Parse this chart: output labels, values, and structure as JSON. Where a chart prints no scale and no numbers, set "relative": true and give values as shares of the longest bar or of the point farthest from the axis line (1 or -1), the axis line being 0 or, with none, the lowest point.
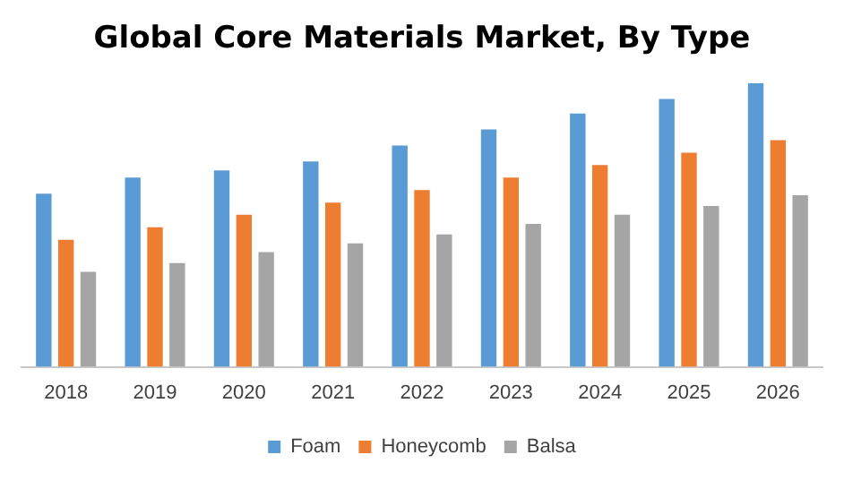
{
  "chart_data": {
    "type": "bar",
    "title": "Global Core Materials Market, By Type",
    "relative": true,
    "legend": "bottom",
    "categories": [
      "2018",
      "2019",
      "2020",
      "2021",
      "2022",
      "2023",
      "2024",
      "2025",
      "2026"
    ],
    "series": [
      {
        "name": "Foam",
        "color": "#5b9bd5",
        "values": [
          0.61,
          0.667,
          0.692,
          0.724,
          0.78,
          0.837,
          0.893,
          0.944,
          1
        ]
      },
      {
        "name": "Honeycomb",
        "color": "#ed7d31",
        "values": [
          0.448,
          0.492,
          0.536,
          0.579,
          0.623,
          0.667,
          0.711,
          0.755,
          0.799
        ]
      },
      {
        "name": "Balsa",
        "color": "#a5a5a5",
        "values": [
          0.335,
          0.366,
          0.404,
          0.435,
          0.467,
          0.504,
          0.536,
          0.567,
          0.605
        ]
      }
    ]
  }
}
